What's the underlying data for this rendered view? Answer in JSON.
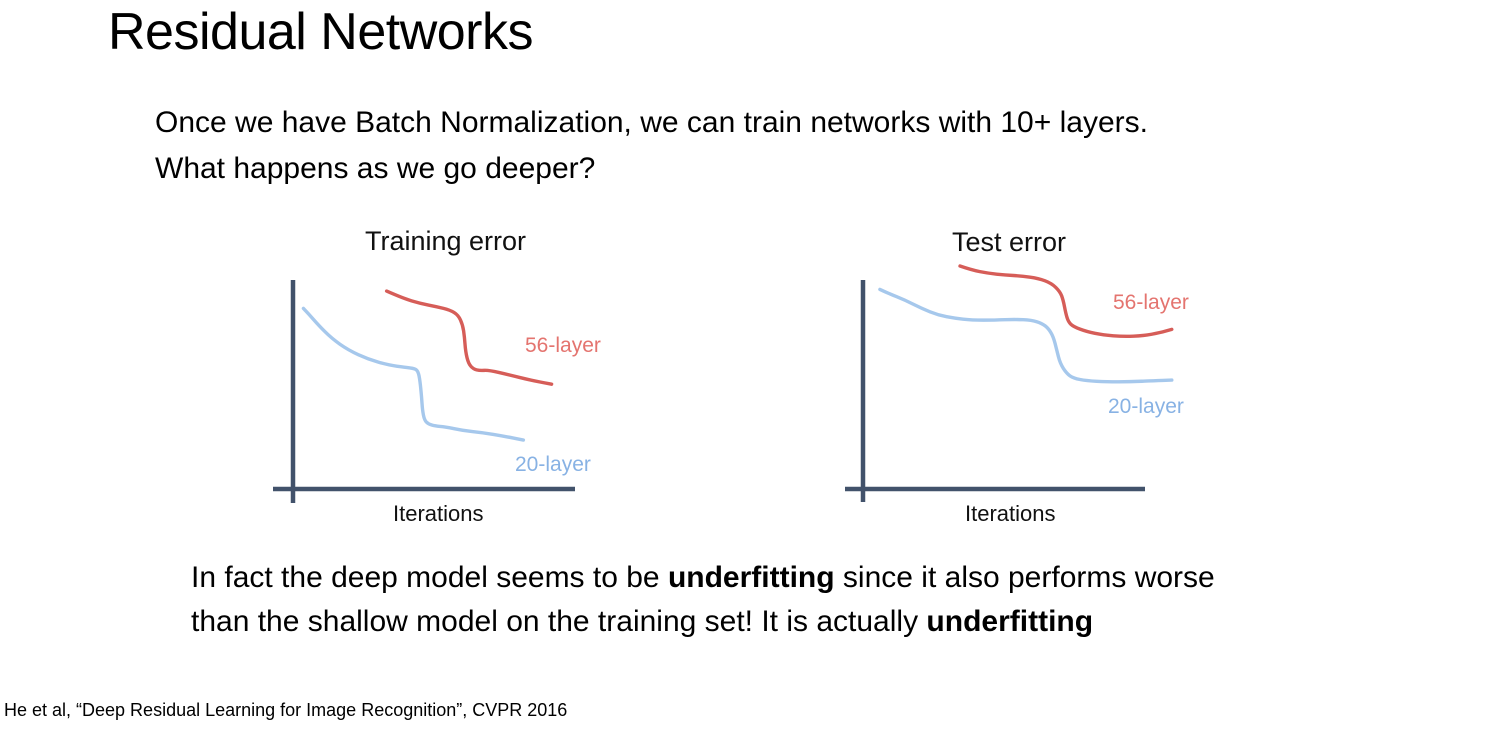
{
  "slide": {
    "title": "Residual Networks",
    "intro": {
      "line1": "Once we have Batch Normalization, we can train networks with 10+ layers.",
      "line2": "What happens as we go deeper?"
    },
    "conclusion": {
      "line1_normal": "In fact the deep model seems to be ",
      "line1_bold": "underfitting",
      "line1_tail": " since it also performs worse",
      "line2_normal": "than the shallow model on the training set! It is actually ",
      "line2_bold": "underfitting"
    },
    "citation": "He et al, “Deep Residual Learning for Image Recognition”, CVPR 2016"
  },
  "colors": {
    "axis": "#42526b",
    "text": "#000000",
    "curve_56": "#d65d58",
    "label_56": "#e4746f",
    "curve_20": "#a6c8ec",
    "label_20": "#88b2e4"
  },
  "chart_data": [
    {
      "type": "line",
      "title": "Training error",
      "xlabel": "Iterations",
      "ylabel": "Training error",
      "x_axis_ticks": "none (qualitative sketch)",
      "y_axis_ticks": "none (qualitative sketch)",
      "grid": false,
      "legend_position": "inline right of each curve",
      "note": "Deeper 56-layer network has HIGHER training error than 20-layer; both curves step down during training. Points are [fraction of x-axis, fraction of y-axis height above x-axis].",
      "series": [
        {
          "name": "56-layer",
          "color": "#d65d58",
          "points": [
            [
              0.332,
              0.95
            ],
            [
              0.391,
              0.915
            ],
            [
              0.45,
              0.891
            ],
            [
              0.51,
              0.875
            ],
            [
              0.557,
              0.859
            ],
            [
              0.586,
              0.835
            ],
            [
              0.602,
              0.787
            ],
            [
              0.608,
              0.731
            ],
            [
              0.612,
              0.659
            ],
            [
              0.622,
              0.603
            ],
            [
              0.639,
              0.576
            ],
            [
              0.663,
              0.568
            ],
            [
              0.693,
              0.571
            ],
            [
              0.77,
              0.547
            ],
            [
              0.84,
              0.523
            ],
            [
              0.917,
              0.503
            ]
          ]
        },
        {
          "name": "20-layer",
          "color": "#a6c8ec",
          "points": [
            [
              0.037,
              0.867
            ],
            [
              0.054,
              0.843
            ],
            [
              0.09,
              0.787
            ],
            [
              0.137,
              0.723
            ],
            [
              0.196,
              0.667
            ],
            [
              0.267,
              0.623
            ],
            [
              0.338,
              0.595
            ],
            [
              0.397,
              0.584
            ],
            [
              0.433,
              0.578
            ],
            [
              0.444,
              0.563
            ],
            [
              0.45,
              0.523
            ],
            [
              0.456,
              0.443
            ],
            [
              0.459,
              0.379
            ],
            [
              0.466,
              0.331
            ],
            [
              0.48,
              0.312
            ],
            [
              0.504,
              0.302
            ],
            [
              0.539,
              0.299
            ],
            [
              0.604,
              0.28
            ],
            [
              0.675,
              0.27
            ],
            [
              0.746,
              0.254
            ],
            [
              0.817,
              0.235
            ]
          ]
        }
      ]
    },
    {
      "type": "line",
      "title": "Test error",
      "xlabel": "Iterations",
      "ylabel": "Test error",
      "x_axis_ticks": "none (qualitative sketch)",
      "y_axis_ticks": "none (qualitative sketch)",
      "grid": false,
      "legend_position": "inline right of each curve",
      "note": "56-layer also has HIGHER test error than 20-layer; both plateau then step down. Points are [fraction of x-axis, fraction of y-axis height above x-axis].",
      "series": [
        {
          "name": "56-layer",
          "color": "#d65d58",
          "points": [
            [
              0.344,
              1.067
            ],
            [
              0.385,
              1.048
            ],
            [
              0.444,
              1.032
            ],
            [
              0.504,
              1.024
            ],
            [
              0.563,
              1.019
            ],
            [
              0.622,
              1.008
            ],
            [
              0.669,
              0.984
            ],
            [
              0.699,
              0.944
            ],
            [
              0.71,
              0.904
            ],
            [
              0.719,
              0.841
            ],
            [
              0.728,
              0.8
            ],
            [
              0.746,
              0.777
            ],
            [
              0.793,
              0.753
            ],
            [
              0.852,
              0.737
            ],
            [
              0.923,
              0.729
            ],
            [
              0.994,
              0.733
            ],
            [
              1.053,
              0.748
            ],
            [
              1.095,
              0.764
            ]
          ]
        },
        {
          "name": "20-layer",
          "color": "#a6c8ec",
          "points": [
            [
              0.06,
              0.955
            ],
            [
              0.09,
              0.936
            ],
            [
              0.149,
              0.904
            ],
            [
              0.208,
              0.864
            ],
            [
              0.267,
              0.832
            ],
            [
              0.326,
              0.817
            ],
            [
              0.385,
              0.808
            ],
            [
              0.468,
              0.808
            ],
            [
              0.539,
              0.812
            ],
            [
              0.598,
              0.808
            ],
            [
              0.634,
              0.793
            ],
            [
              0.657,
              0.769
            ],
            [
              0.675,
              0.729
            ],
            [
              0.687,
              0.665
            ],
            [
              0.699,
              0.601
            ],
            [
              0.722,
              0.553
            ],
            [
              0.746,
              0.53
            ],
            [
              0.793,
              0.518
            ],
            [
              0.864,
              0.513
            ],
            [
              0.947,
              0.513
            ],
            [
              1.03,
              0.518
            ],
            [
              1.095,
              0.521
            ]
          ]
        }
      ]
    }
  ]
}
